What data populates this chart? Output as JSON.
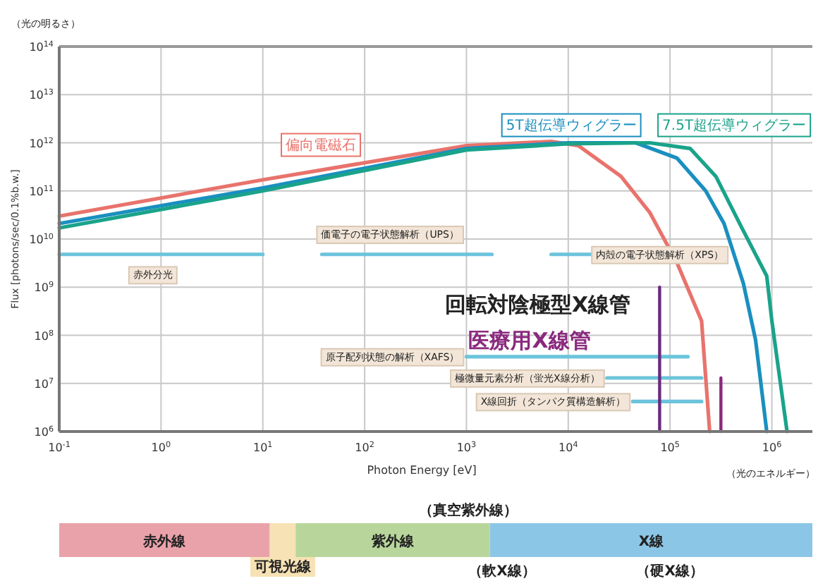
{
  "chart_data": [
    {
      "type": "line",
      "log": "xy",
      "grid": true,
      "legend": false,
      "xlabel": "Photon Energy [eV]",
      "ylabel": "Flux [photons/sec/0.1%b.w.]",
      "xlim": [
        0.1,
        2500000
      ],
      "ylim": [
        1000000,
        100000000000000
      ],
      "xticks": [
        {
          "value": 0.1,
          "label": "10$^{-1}$"
        },
        {
          "value": 1,
          "label": "10$^{0}$"
        },
        {
          "value": 10,
          "label": "10$^{1}$"
        },
        {
          "value": 100,
          "label": "10$^{2}$"
        },
        {
          "value": 1000,
          "label": "10$^{3}$"
        },
        {
          "value": 10000,
          "label": "10$^{4}$"
        },
        {
          "value": 100000,
          "label": "10$^{5}$"
        },
        {
          "value": 1000000,
          "label": "10$^{6}$"
        }
      ],
      "yticks": [
        {
          "value": 1000000,
          "label": "10$^{6}$"
        },
        {
          "value": 10000000,
          "label": "10$^{7}$"
        },
        {
          "value": 100000000,
          "label": "10$^{8}$"
        },
        {
          "value": 1000000000,
          "label": "10$^{9}$"
        },
        {
          "value": 10000000000,
          "label": "10$^{10}$"
        },
        {
          "value": 100000000000,
          "label": "10$^{11}$"
        },
        {
          "value": 1000000000000,
          "label": "10$^{12}$"
        },
        {
          "value": 10000000000000,
          "label": "10$^{13}$"
        },
        {
          "value": 100000000000000,
          "label": "10$^{14}$"
        }
      ],
      "series": [
        {
          "name": "偏向電磁石",
          "color": "#e8736c",
          "x": [
            0.1,
            10,
            1000,
            6800,
            12600,
            33000,
            63000,
            117000,
            204000,
            245000
          ],
          "values": [
            30000000000,
            170000000000,
            870000000000,
            1070000000000,
            870000000000,
            200000000000,
            36000000000,
            3200000000,
            200000000,
            1000000
          ]
        },
        {
          "name": "5T超伝導ウィグラー",
          "color": "#1a8fc0",
          "x": [
            0.1,
            10,
            1000,
            10000,
            46000,
            117000,
            224000,
            339000,
            525000,
            692000,
            891000
          ],
          "values": [
            21000000000,
            115000000000,
            760000000000,
            1000000000000,
            1000000000000,
            480000000000,
            100000000000,
            21000000000,
            1200000000,
            80000000,
            1000000
          ]
        },
        {
          "name": "7.5T超伝導ウィグラー",
          "color": "#1aa38a",
          "x": [
            0.1,
            10,
            1000,
            10000,
            63000,
            158000,
            282000,
            501000,
            891000,
            1000000,
            1410000
          ],
          "values": [
            17000000000,
            100000000000,
            710000000000,
            950000000000,
            1000000000000,
            760000000000,
            200000000000,
            18000000000,
            1700000000,
            200000000,
            1000000
          ]
        },
        {
          "name": "赤外分光",
          "color": "#6cc4dc",
          "x": [
            0.1,
            10
          ],
          "values": [
            4800000000,
            4800000000
          ]
        },
        {
          "name": "価電子の電子状態解析（UPS）",
          "color": "#6cc4dc",
          "x": [
            38,
            1780
          ],
          "values": [
            4800000000,
            4800000000
          ]
        },
        {
          "name": "内殻の電子状態解析（XPS）",
          "color": "#6cc4dc",
          "x": [
            6800,
            17000
          ],
          "values": [
            4800000000,
            4800000000
          ]
        },
        {
          "name": "原子配列状態の解析（XAFS）",
          "color": "#6cc4dc",
          "x": [
            1000,
            150000
          ],
          "values": [
            36000000,
            36000000
          ]
        },
        {
          "name": "極微量元素分析（蛍光X線分析）",
          "color": "#6cc4dc",
          "x": [
            24000,
            204000
          ],
          "values": [
            13000000,
            13000000
          ]
        },
        {
          "name": "X線回折（タンパク質構造解析）",
          "color": "#6cc4dc",
          "x": [
            43000,
            204000
          ],
          "values": [
            4200000,
            4200000
          ]
        },
        {
          "name": "回転対陰極型X線管",
          "color": "#6a2a7e",
          "x": [
            79000,
            79000
          ],
          "values": [
            1000000000,
            1000000
          ]
        },
        {
          "name": "医療用X線管",
          "color": "#8a2a7e",
          "x": [
            316000,
            316000
          ],
          "values": [
            13000000,
            1000000
          ]
        }
      ],
      "annotations": [
        "（光の明るさ）",
        "（光のエネルギー）"
      ]
    },
    {
      "type": "bar",
      "orientation": "horizontal",
      "log": "x",
      "xlim": [
        0.1,
        2500000
      ],
      "categories": [
        null
      ],
      "series": [
        {
          "name": "赤外線",
          "color": "#eaa2aa",
          "base": [
            0.1
          ],
          "values": [
            11.6
          ]
        },
        {
          "name": "可視光線",
          "color": "#f6e2b4",
          "base": [
            11.7
          ],
          "values": [
            9.3
          ]
        },
        {
          "name": "紫外線",
          "color": "#b8d69c",
          "base": [
            21
          ],
          "values": [
            1679
          ]
        },
        {
          "name": "X線",
          "color": "#8cc6e6",
          "base": [
            1700
          ],
          "values": [
            2498300
          ]
        }
      ],
      "annotations": [
        "（真空紫外線）",
        "（軟X線）",
        "（硬X線）"
      ]
    }
  ]
}
